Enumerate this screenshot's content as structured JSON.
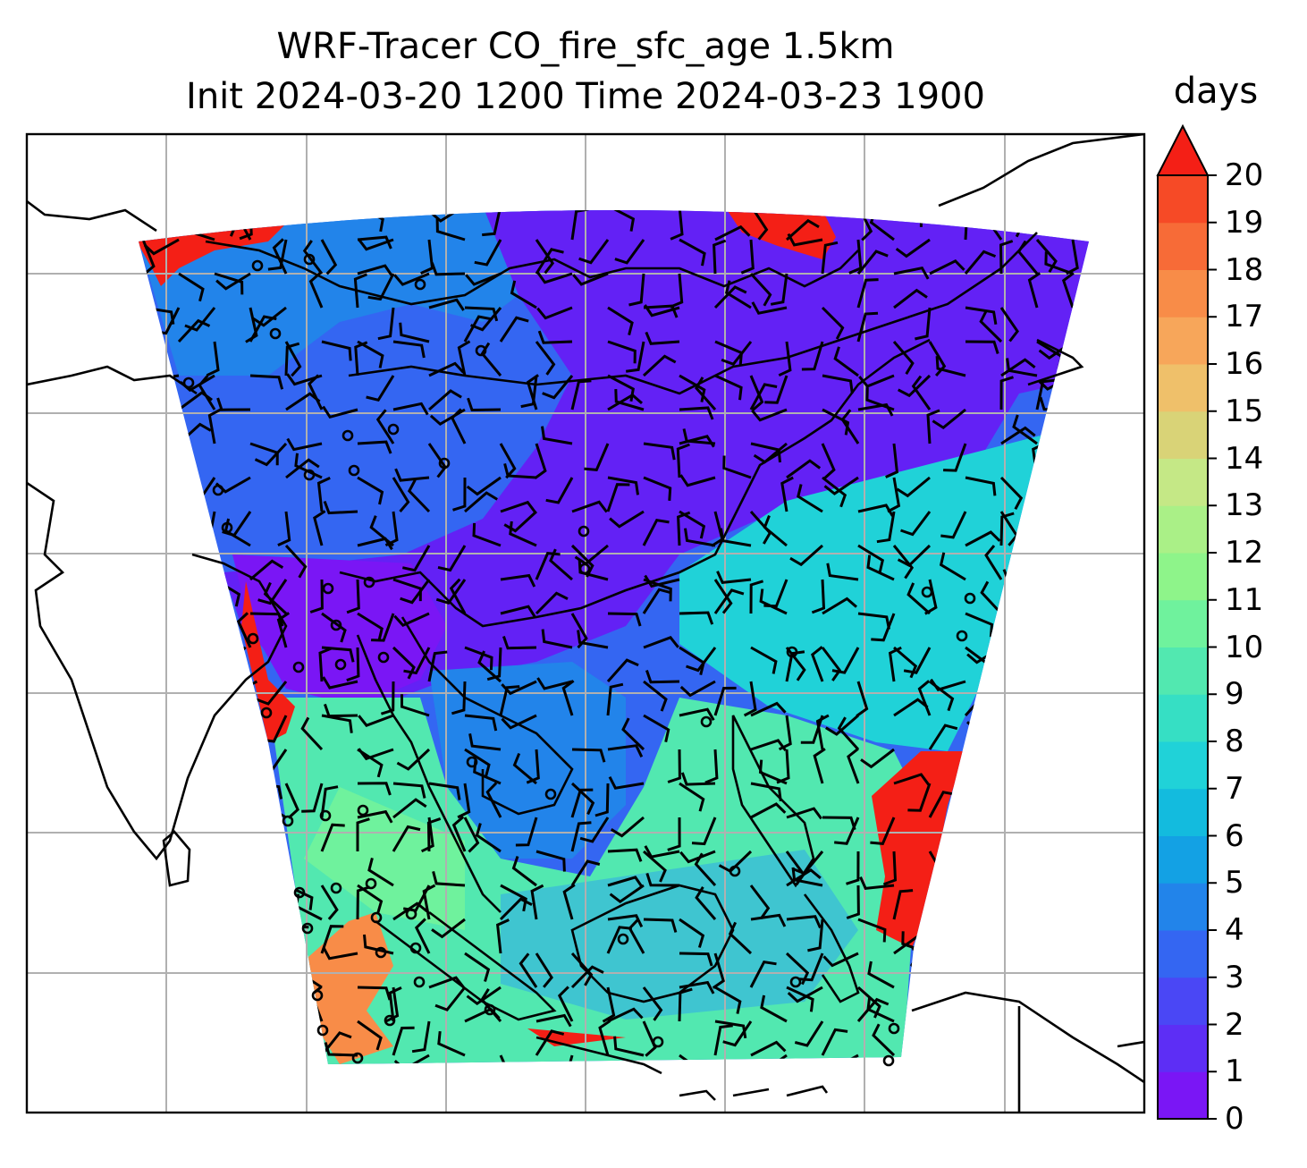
{
  "title_line1": "WRF-Tracer CO_fire_sfc_age 1.5km",
  "title_line2": "Init 2024-03-20 1200 Time 2024-03-23 1900",
  "colorbar": {
    "units": "days",
    "min": 0,
    "max": 20,
    "extend": "max",
    "tick_labels": [
      "0",
      "1",
      "2",
      "3",
      "4",
      "5",
      "6",
      "7",
      "8",
      "9",
      "10",
      "11",
      "12",
      "13",
      "14",
      "15",
      "16",
      "17",
      "18",
      "19",
      "20"
    ],
    "colors": [
      "#7a16f5",
      "#5d2ef5",
      "#4a47f5",
      "#3466f2",
      "#2284ea",
      "#13a1e4",
      "#13bbde",
      "#20d2d8",
      "#36dfc4",
      "#52e8b0",
      "#6ff29d",
      "#8ef48a",
      "#aaf087",
      "#c5e886",
      "#d9d377",
      "#efc06a",
      "#f7a65a",
      "#f88c48",
      "#f76b37",
      "#f64a26",
      "#f41f16"
    ]
  },
  "map": {
    "region": "South and Southeast Asia, southern China, Maritime Continent",
    "field": "CO_fire_sfc_age",
    "gridlines": true,
    "overlays": [
      "coastlines",
      "country borders",
      "wind barbs"
    ],
    "age_regions_days": {
      "northwest_corner": 20,
      "northeast_corner": 20,
      "east_boundary": 20,
      "west_bay_of_bengal_edge": 20,
      "southwest_indian_ocean": 16,
      "north_plateau": 3,
      "southern_china": 1,
      "bay_of_bengal": 1,
      "south_china_sea": 7,
      "western_pacific": 6,
      "maritime_continent": 9
    }
  }
}
